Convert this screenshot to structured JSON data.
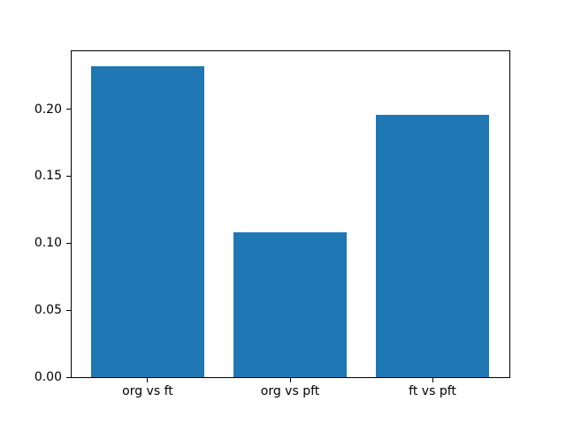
{
  "chart_data": {
    "type": "bar",
    "title": "",
    "xlabel": "",
    "ylabel": "",
    "categories": [
      "org vs ft",
      "org vs pft",
      "ft vs pft"
    ],
    "values": [
      0.232,
      0.108,
      0.196
    ],
    "bar_width": 0.8,
    "xlim": [
      -0.54,
      2.54
    ],
    "ylim": [
      0,
      0.2436
    ],
    "yticks": {
      "values": [
        0,
        0.05,
        0.1,
        0.15,
        0.2
      ],
      "labels": [
        "0.00",
        "0.05",
        "0.10",
        "0.15",
        "0.20"
      ]
    },
    "grid": false,
    "legend": null,
    "colors": {
      "bar": "#1f77b4",
      "spine": "#000000",
      "text": "#000000",
      "background": "#ffffff"
    }
  }
}
